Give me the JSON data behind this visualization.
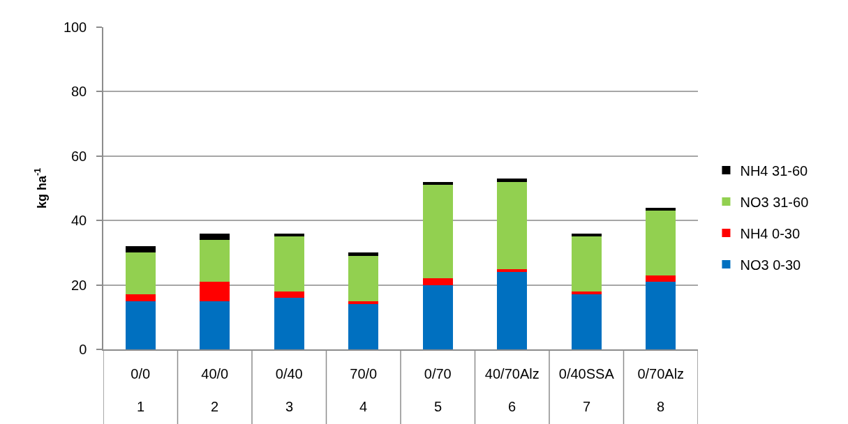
{
  "chart_data": {
    "type": "bar",
    "stacked": true,
    "categories": [
      "0/0\n1",
      "40/0\n2",
      "0/40\n3",
      "70/0\n4",
      "0/70\n5",
      "40/70Alz\n6",
      "0/40SSA\n7",
      "0/70Alz\n8"
    ],
    "series": [
      {
        "name": "NO3 0-30",
        "color": "#0070c0",
        "values": [
          15,
          15,
          16,
          14,
          20,
          24,
          17,
          21
        ]
      },
      {
        "name": "NH4 0-30",
        "color": "#ff0000",
        "values": [
          2,
          6,
          2,
          1,
          2,
          1,
          1,
          2
        ]
      },
      {
        "name": "NO3 31-60",
        "color": "#92d050",
        "values": [
          13,
          13,
          17,
          14,
          29,
          27,
          17,
          20
        ]
      },
      {
        "name": "NH4 31-60",
        "color": "#000000",
        "values": [
          2,
          2,
          1,
          1,
          1,
          1,
          1,
          1
        ]
      }
    ],
    "ylabel": "kg ha$^{-1}$",
    "ylim": [
      0,
      100
    ],
    "yticks": [
      0,
      20,
      40,
      60,
      80,
      100
    ],
    "grid": "y",
    "legend": "right"
  }
}
